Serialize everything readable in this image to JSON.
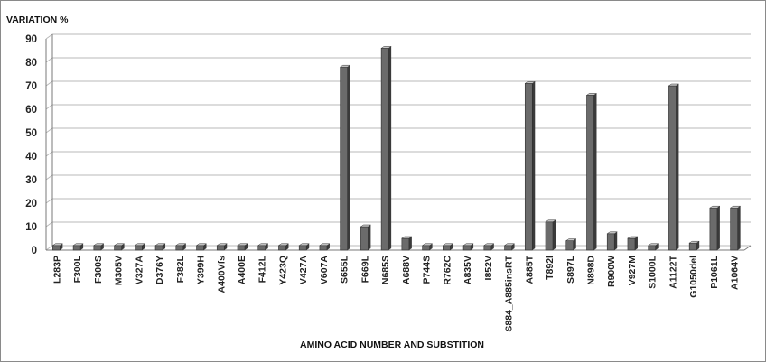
{
  "chart_data": {
    "type": "bar",
    "ylabel": "VARIATION %",
    "xlabel": "AMINO ACID NUMBER AND SUBSTITION",
    "ylim": [
      0,
      90
    ],
    "yticks": [
      0,
      10,
      20,
      30,
      40,
      50,
      60,
      70,
      80,
      90
    ],
    "grid": true,
    "categories": [
      "L283P",
      "F300L",
      "F300S",
      "M305V",
      "V327A",
      "D376Y",
      "F382L",
      "Y399H",
      "A400Vfs",
      "A400E",
      "F412L",
      "Y423Q",
      "V427A",
      "V607A",
      "S655L",
      "F669L",
      "N685S",
      "A688V",
      "P744S",
      "R762C",
      "A835V",
      "I852V",
      "S884_A885insRT",
      "A885T",
      "T892I",
      "S897L",
      "N898D",
      "R900W",
      "V927M",
      "S1000L",
      "A1122T",
      "G1050del",
      "P1061L",
      "A1064V"
    ],
    "values": [
      2,
      2,
      2,
      2,
      2,
      2,
      2,
      2,
      2,
      2,
      2,
      2,
      2,
      2,
      78,
      10,
      86,
      5,
      2,
      2,
      2,
      2,
      2,
      71,
      12,
      4,
      66,
      7,
      5,
      2,
      70,
      3,
      18,
      18
    ],
    "colors": {
      "bar_front": "#6b6b6b",
      "bar_side": "#3a3a3a",
      "bar_top": "#c8c8c8",
      "grid": "#b8b8b8",
      "axis": "#7a7a7a"
    }
  }
}
